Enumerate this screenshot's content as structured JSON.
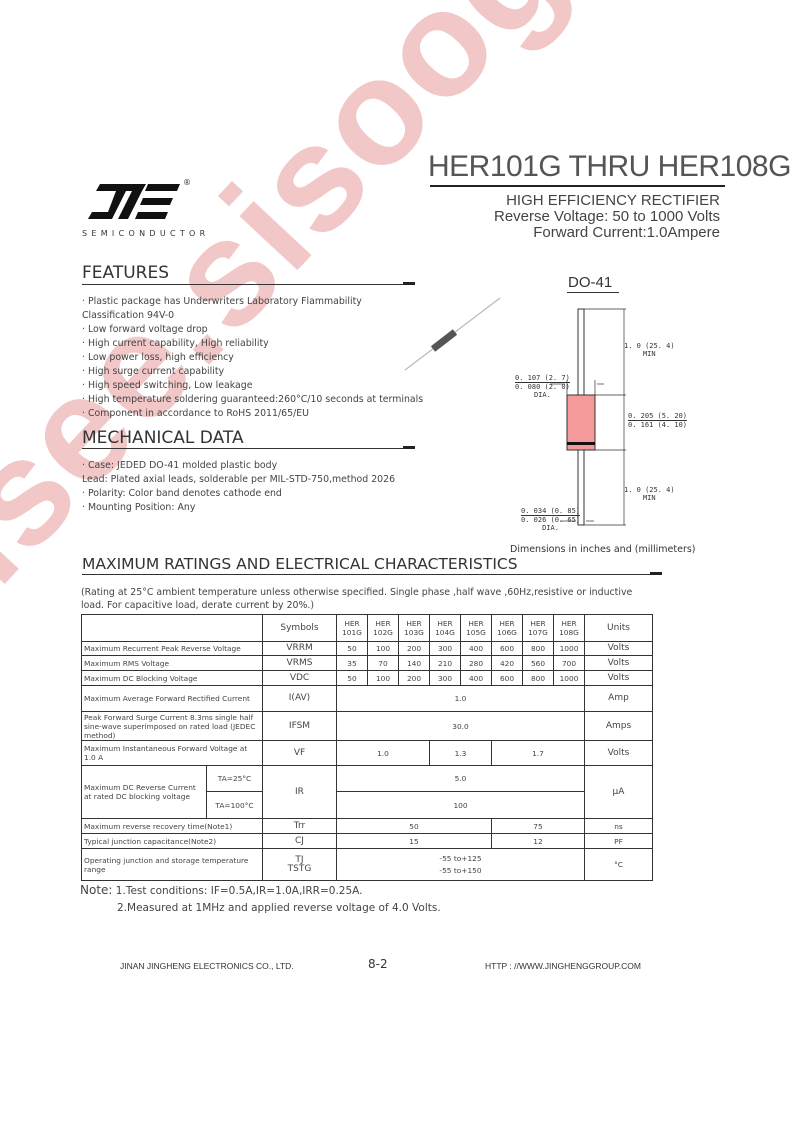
{
  "watermark": "isee.sisoog.com",
  "header": {
    "title": "HER101G THRU HER108G",
    "subtitle": "HIGH EFFICIENCY RECTIFIER",
    "reverse_voltage": "Reverse Voltage: 50 to 1000 Volts",
    "forward_current": "Forward Current:1.0Ampere"
  },
  "logo": {
    "mark": "JE",
    "registered": "®",
    "tagline": "SEMICONDUCTOR"
  },
  "features": {
    "title": "FEATURES",
    "items": [
      "Plastic package has Underwriters Laboratory Flammability",
      "Classification 94V-0",
      "Low forward voltage drop",
      "High current capability, High reliability",
      "Low power loss, high efficiency",
      "High surge current capability",
      "High speed switching, Low leakage",
      "High temperature soldering guaranteed:260°C/10 seconds at terminals",
      "Component in accordance to RoHS 2011/65/EU"
    ]
  },
  "mechanical": {
    "title": "MECHANICAL DATA",
    "items": [
      "Case: JEDED DO-41 molded plastic body",
      "Lead: Plated axial leads, solderable per MIL-STD-750,method 2026",
      "Polarity: Color band denotes cathode end",
      "Mounting Position: Any"
    ]
  },
  "package": {
    "name": "DO-41",
    "lead_length": "1. 0 (25. 4)",
    "min": "MIN",
    "body_dia_max": "0. 107 (2. 7)",
    "body_dia_min": "0. 080 (2. 0)",
    "dia": "DIA.",
    "body_len_max": "0. 205 (5. 20)",
    "body_len_min": "0. 161 (4. 10)",
    "lead_dia_max": "0. 034 (0. 85)",
    "lead_dia_min": "0. 026 (0. 65)",
    "caption": "Dimensions in inches and (millimeters)",
    "band_color": "#f08080"
  },
  "ratings": {
    "title": "MAXIMUM RATINGS AND ELECTRICAL CHARACTERISTICS",
    "note_line1": "(Rating at 25°C ambient temperature unless otherwise specified. Single phase ,half wave ,60Hz,resistive or inductive",
    "note_line2": "load. For capacitive load, derate current by 20%.)"
  },
  "table": {
    "symbols_header": "Symbols",
    "units_header": "Units",
    "parts": [
      "HER 101G",
      "HER 102G",
      "HER 103G",
      "HER 104G",
      "HER 105G",
      "HER 106G",
      "HER 107G",
      "HER 108G"
    ],
    "rows": {
      "vrrm": {
        "desc": "Maximum Recurrent Peak Reverse Voltage",
        "sym": "VRRM",
        "values": [
          "50",
          "100",
          "200",
          "300",
          "400",
          "600",
          "800",
          "1000"
        ],
        "unit": "Volts"
      },
      "vrms": {
        "desc": "Maximum RMS Voltage",
        "sym": "VRMS",
        "values": [
          "35",
          "70",
          "140",
          "210",
          "280",
          "420",
          "560",
          "700"
        ],
        "unit": "Volts"
      },
      "vdc": {
        "desc": "Maximum DC Blocking Voltage",
        "sym": "VDC",
        "values": [
          "50",
          "100",
          "200",
          "300",
          "400",
          "600",
          "800",
          "1000"
        ],
        "unit": "Volts"
      },
      "iav": {
        "desc": "Maximum Average Forward Rectified Current",
        "sym": "I(AV)",
        "value": "1.0",
        "unit": "Amp"
      },
      "ifsm": {
        "desc": "Peak Forward Surge Current 8.3ms single half sine-wave superimposed on rated load (JEDEC method)",
        "sym": "IFSM",
        "value": "30.0",
        "unit": "Amps"
      },
      "vf": {
        "desc": "Maximum Instantaneous Forward Voltage at 1.0 A",
        "sym": "VF",
        "values": [
          "1.0",
          "1.3",
          "1.7"
        ],
        "unit": "Volts"
      },
      "ir": {
        "desc": "Maximum DC Reverse Current at rated DC blocking voltage",
        "t1": "TA=25°C",
        "t2": "TA=100°C",
        "sym": "IR",
        "v1": "5.0",
        "v2": "100",
        "unit": "μA"
      },
      "trr": {
        "desc": "Maximum reverse recovery time(Note1)",
        "sym": "Trr",
        "values": [
          "50",
          "75"
        ],
        "unit": "ns"
      },
      "cj": {
        "desc": "Typical junction capacitance(Note2)",
        "sym": "CJ",
        "values": [
          "15",
          "12"
        ],
        "unit": "PF"
      },
      "tj": {
        "desc": "Operating junction and storage temperature range",
        "sym1": "TJ",
        "sym2": "TSTG",
        "v1": "-55 to+125",
        "v2": "-55 to+150",
        "unit": "°C"
      }
    }
  },
  "notes": {
    "label": "Note:",
    "n1": "1.Test conditions: IF=0.5A,IR=1.0A,IRR=0.25A.",
    "n2": "2.Measured at 1MHz and applied reverse voltage of 4.0 Volts."
  },
  "footer": {
    "company": "JINAN JINGHENG  ELECTRONICS   CO., LTD.",
    "page": "8-2",
    "url": "HTTP : //WWW.JINGHENGGROUP.COM"
  }
}
